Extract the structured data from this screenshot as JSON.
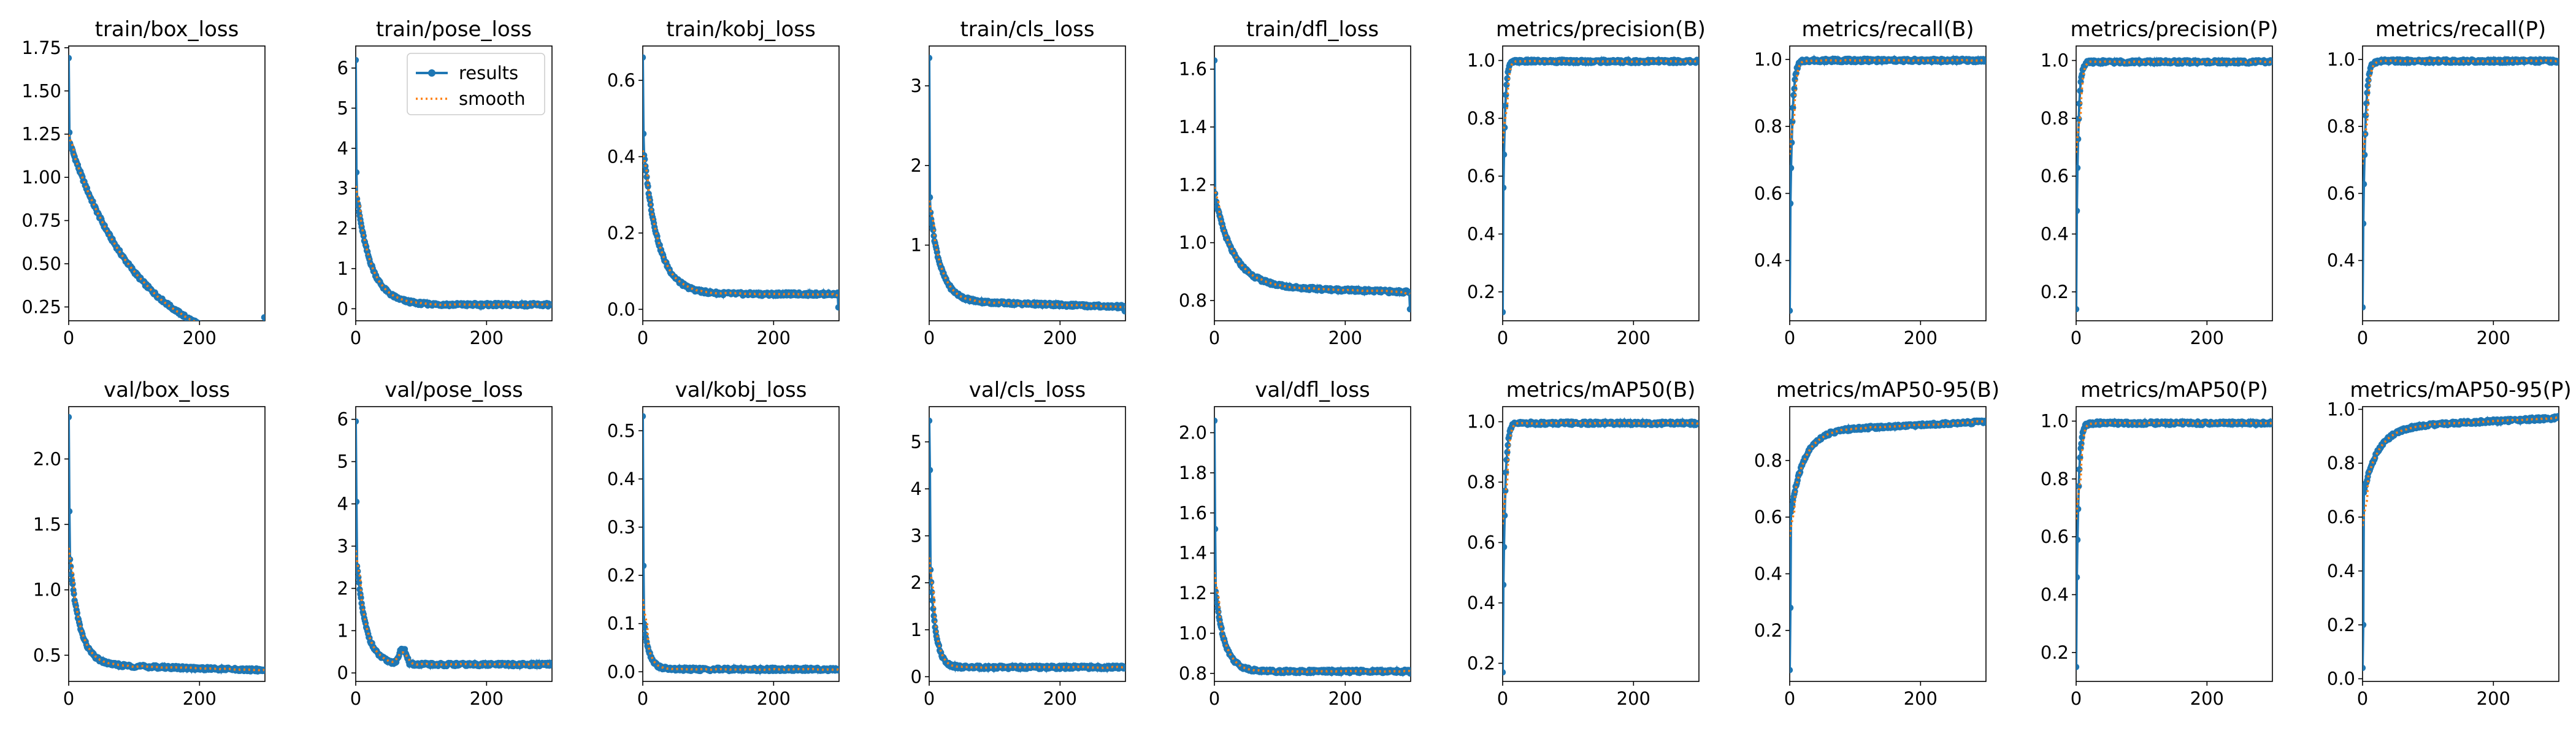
{
  "colors": {
    "results": "#1f77b4",
    "smooth": "#ff7f0e"
  },
  "legend": {
    "results": "results",
    "smooth": "smooth"
  },
  "chart_data": [
    {
      "type": "line",
      "title": "train/box_loss",
      "xlim": [
        0,
        300
      ],
      "ylim": [
        0.17,
        1.76
      ],
      "yticks": [
        "0.25",
        "0.50",
        "0.75",
        "1.00",
        "1.25",
        "1.50",
        "1.75"
      ],
      "ytick_values": [
        0.25,
        0.5,
        0.75,
        1.0,
        1.25,
        1.5,
        1.75
      ],
      "xticks": [
        "0",
        "200"
      ],
      "xtick_values": [
        0,
        200
      ],
      "curve": {
        "start": 1.69,
        "second": 1.26,
        "floor": 0.0,
        "amp": 1.22,
        "rate": 0.0095,
        "slope": -0.00017,
        "last": 0.19,
        "notch": 0
      }
    },
    {
      "type": "line",
      "title": "train/pose_loss",
      "xlim": [
        0,
        300
      ],
      "ylim": [
        -0.3,
        6.55
      ],
      "yticks": [
        "0",
        "1",
        "2",
        "3",
        "4",
        "5",
        "6"
      ],
      "ytick_values": [
        0,
        1,
        2,
        3,
        4,
        5,
        6
      ],
      "xticks": [
        "0",
        "200"
      ],
      "xtick_values": [
        0,
        200
      ],
      "legend": true,
      "curve": {
        "start": 6.2,
        "second": 3.4,
        "floor": 0.1,
        "amp": 2.9,
        "rate": 0.045,
        "slope": 0.0,
        "last": 0.1,
        "notch": 0
      }
    },
    {
      "type": "line",
      "title": "train/kobj_loss",
      "xlim": [
        0,
        300
      ],
      "ylim": [
        -0.03,
        0.69
      ],
      "yticks": [
        "0.0",
        "0.2",
        "0.4",
        "0.6"
      ],
      "ytick_values": [
        0.0,
        0.2,
        0.4,
        0.6
      ],
      "xticks": [
        "0",
        "200"
      ],
      "xtick_values": [
        0,
        200
      ],
      "curve": {
        "start": 0.66,
        "second": 0.46,
        "floor": 0.04,
        "amp": 0.4,
        "rate": 0.045,
        "slope": 0.0,
        "last": 0.005,
        "notch": 0
      }
    },
    {
      "type": "line",
      "title": "train/cls_loss",
      "xlim": [
        0,
        300
      ],
      "ylim": [
        0.05,
        3.5
      ],
      "yticks": [
        "1",
        "2",
        "3"
      ],
      "ytick_values": [
        1,
        2,
        3
      ],
      "xticks": [
        "0",
        "200"
      ],
      "xtick_values": [
        0,
        200
      ],
      "curve": {
        "start": 3.35,
        "second": 1.6,
        "floor": 0.3,
        "amp": 1.25,
        "rate": 0.06,
        "slope": -0.00025,
        "last": 0.17,
        "notch": 0
      }
    },
    {
      "type": "line",
      "title": "train/dfl_loss",
      "xlim": [
        0,
        300
      ],
      "ylim": [
        0.73,
        1.68
      ],
      "yticks": [
        "0.8",
        "1.0",
        "1.2",
        "1.4",
        "1.6"
      ],
      "ytick_values": [
        0.8,
        1.0,
        1.2,
        1.4,
        1.6
      ],
      "xticks": [
        "0",
        "200"
      ],
      "xtick_values": [
        0,
        200
      ],
      "curve": {
        "start": 1.63,
        "second": 1.17,
        "floor": 0.85,
        "amp": 0.32,
        "rate": 0.035,
        "slope": -7e-05,
        "last": 0.77,
        "notch": 0
      }
    },
    {
      "type": "line",
      "title": "metrics/precision(B)",
      "xlim": [
        0,
        300
      ],
      "ylim": [
        0.1,
        1.05
      ],
      "yticks": [
        "0.2",
        "0.4",
        "0.6",
        "0.8",
        "1.0"
      ],
      "ytick_values": [
        0.2,
        0.4,
        0.6,
        0.8,
        1.0
      ],
      "xticks": [
        "0",
        "200"
      ],
      "xtick_values": [
        0,
        200
      ],
      "curve": {
        "start": 0.13,
        "second": 0.56,
        "floor": 0.997,
        "amp": -0.45,
        "rate": 0.35,
        "slope": 0.0,
        "last": 0.997,
        "notch": 0
      }
    },
    {
      "type": "line",
      "title": "metrics/recall(B)",
      "xlim": [
        0,
        300
      ],
      "ylim": [
        0.22,
        1.04
      ],
      "yticks": [
        "0.4",
        "0.6",
        "0.8",
        "1.0"
      ],
      "ytick_values": [
        0.4,
        0.6,
        0.8,
        1.0
      ],
      "xticks": [
        "0",
        "200"
      ],
      "xtick_values": [
        0,
        200
      ],
      "curve": {
        "start": 0.25,
        "second": 0.57,
        "floor": 0.997,
        "amp": -0.43,
        "rate": 0.28,
        "slope": 0.0,
        "last": 0.997,
        "notch": 0
      }
    },
    {
      "type": "line",
      "title": "metrics/precision(P)",
      "xlim": [
        0,
        300
      ],
      "ylim": [
        0.1,
        1.05
      ],
      "yticks": [
        "0.2",
        "0.4",
        "0.6",
        "0.8",
        "1.0"
      ],
      "ytick_values": [
        0.2,
        0.4,
        0.6,
        0.8,
        1.0
      ],
      "xticks": [
        "0",
        "200"
      ],
      "xtick_values": [
        0,
        200
      ],
      "curve": {
        "start": 0.14,
        "second": 0.48,
        "floor": 0.995,
        "amp": -0.5,
        "rate": 0.32,
        "slope": 0.0,
        "last": 0.995,
        "notch": 0
      }
    },
    {
      "type": "line",
      "title": "metrics/recall(P)",
      "xlim": [
        0,
        300
      ],
      "ylim": [
        0.22,
        1.04
      ],
      "yticks": [
        "0.4",
        "0.6",
        "0.8",
        "1.0"
      ],
      "ytick_values": [
        0.4,
        0.6,
        0.8,
        1.0
      ],
      "xticks": [
        "0",
        "200"
      ],
      "xtick_values": [
        0,
        200
      ],
      "curve": {
        "start": 0.26,
        "second": 0.51,
        "floor": 0.995,
        "amp": -0.48,
        "rate": 0.27,
        "slope": 0.0,
        "last": 0.995,
        "notch": 0
      }
    },
    {
      "type": "line",
      "title": "val/box_loss",
      "xlim": [
        0,
        300
      ],
      "ylim": [
        0.3,
        2.4
      ],
      "yticks": [
        "0.5",
        "1.0",
        "1.5",
        "2.0"
      ],
      "ytick_values": [
        0.5,
        1.0,
        1.5,
        2.0
      ],
      "xticks": [
        "0",
        "200"
      ],
      "xtick_values": [
        0,
        200
      ],
      "curve": {
        "start": 2.32,
        "second": 1.6,
        "floor": 0.43,
        "amp": 0.9,
        "rate": 0.065,
        "slope": -0.00015,
        "last": 0.39,
        "notch": 0
      }
    },
    {
      "type": "line",
      "title": "val/pose_loss",
      "xlim": [
        0,
        300
      ],
      "ylim": [
        -0.2,
        6.3
      ],
      "yticks": [
        "0",
        "1",
        "2",
        "3",
        "4",
        "5",
        "6"
      ],
      "ytick_values": [
        0,
        1,
        2,
        3,
        4,
        5,
        6
      ],
      "xticks": [
        "0",
        "200"
      ],
      "xtick_values": [
        0,
        200
      ],
      "curve": {
        "start": 5.95,
        "second": 4.05,
        "floor": 0.2,
        "amp": 2.7,
        "rate": 0.07,
        "slope": 0.0,
        "last": 0.2,
        "notch": 0.35
      }
    },
    {
      "type": "line",
      "title": "val/kobj_loss",
      "xlim": [
        0,
        300
      ],
      "ylim": [
        -0.02,
        0.55
      ],
      "yticks": [
        "0.0",
        "0.1",
        "0.2",
        "0.3",
        "0.4",
        "0.5"
      ],
      "ytick_values": [
        0.0,
        0.1,
        0.2,
        0.3,
        0.4,
        0.5
      ],
      "xticks": [
        "0",
        "200"
      ],
      "xtick_values": [
        0,
        200
      ],
      "curve": {
        "start": 0.53,
        "second": 0.22,
        "floor": 0.005,
        "amp": 0.12,
        "rate": 0.12,
        "slope": 0.0,
        "last": 0.003,
        "notch": 0
      }
    },
    {
      "type": "line",
      "title": "val/cls_loss",
      "xlim": [
        0,
        300
      ],
      "ylim": [
        -0.1,
        5.75
      ],
      "yticks": [
        "0",
        "1",
        "2",
        "3",
        "4",
        "5"
      ],
      "ytick_values": [
        0,
        1,
        2,
        3,
        4,
        5
      ],
      "xticks": [
        "0",
        "200"
      ],
      "xtick_values": [
        0,
        200
      ],
      "curve": {
        "start": 5.45,
        "second": 4.4,
        "floor": 0.2,
        "amp": 2.6,
        "rate": 0.12,
        "slope": 0.0,
        "last": 0.18,
        "notch": 0
      }
    },
    {
      "type": "line",
      "title": "val/dfl_loss",
      "xlim": [
        0,
        300
      ],
      "ylim": [
        0.76,
        2.13
      ],
      "yticks": [
        "0.8",
        "1.0",
        "1.2",
        "1.4",
        "1.6",
        "1.8",
        "2.0"
      ],
      "ytick_values": [
        0.8,
        1.0,
        1.2,
        1.4,
        1.6,
        1.8,
        2.0
      ],
      "xticks": [
        "0",
        "200"
      ],
      "xtick_values": [
        0,
        200
      ],
      "curve": {
        "start": 2.06,
        "second": 1.52,
        "floor": 0.81,
        "amp": 0.45,
        "rate": 0.07,
        "slope": 0.0,
        "last": 0.8,
        "notch": 0
      }
    },
    {
      "type": "line",
      "title": "metrics/mAP50(B)",
      "xlim": [
        0,
        300
      ],
      "ylim": [
        0.14,
        1.05
      ],
      "yticks": [
        "0.2",
        "0.4",
        "0.6",
        "0.8",
        "1.0"
      ],
      "ytick_values": [
        0.2,
        0.4,
        0.6,
        0.8,
        1.0
      ],
      "xticks": [
        "0",
        "200"
      ],
      "xtick_values": [
        0,
        200
      ],
      "curve": {
        "start": 0.17,
        "second": 0.46,
        "floor": 0.995,
        "amp": -0.55,
        "rate": 0.3,
        "slope": 0.0,
        "last": 0.995,
        "notch": 0
      }
    },
    {
      "type": "line",
      "title": "metrics/mAP50-95(B)",
      "xlim": [
        0,
        300
      ],
      "ylim": [
        0.02,
        0.99
      ],
      "yticks": [
        "0.2",
        "0.4",
        "0.6",
        "0.8"
      ],
      "ytick_values": [
        0.2,
        0.4,
        0.6,
        0.8
      ],
      "xticks": [
        "0",
        "200"
      ],
      "xtick_values": [
        0,
        200
      ],
      "curve": {
        "start": 0.06,
        "second": 0.28,
        "floor": 0.92,
        "amp": -0.3,
        "rate": 0.05,
        "slope": 0.00011,
        "last": 0.94,
        "notch": 0
      }
    },
    {
      "type": "line",
      "title": "metrics/mAP50(P)",
      "xlim": [
        0,
        300
      ],
      "ylim": [
        0.1,
        1.05
      ],
      "yticks": [
        "0.2",
        "0.4",
        "0.6",
        "0.8",
        "1.0"
      ],
      "ytick_values": [
        0.2,
        0.4,
        0.6,
        0.8,
        1.0
      ],
      "xticks": [
        "0",
        "200"
      ],
      "xtick_values": [
        0,
        200
      ],
      "curve": {
        "start": 0.15,
        "second": 0.46,
        "floor": 0.993,
        "amp": -0.55,
        "rate": 0.3,
        "slope": 0.0,
        "last": 0.993,
        "notch": 0
      }
    },
    {
      "type": "line",
      "title": "metrics/mAP50-95(P)",
      "xlim": [
        0,
        300
      ],
      "ylim": [
        -0.01,
        1.01
      ],
      "yticks": [
        "0.0",
        "0.2",
        "0.4",
        "0.6",
        "0.8",
        "1.0"
      ],
      "ytick_values": [
        0.0,
        0.2,
        0.4,
        0.6,
        0.8,
        1.0
      ],
      "xticks": [
        "0",
        "200"
      ],
      "xtick_values": [
        0,
        200
      ],
      "curve": {
        "start": 0.04,
        "second": 0.2,
        "floor": 0.95,
        "amp": -0.25,
        "rate": 0.045,
        "slope": 0.00012,
        "last": 0.975,
        "notch": 0
      }
    }
  ]
}
